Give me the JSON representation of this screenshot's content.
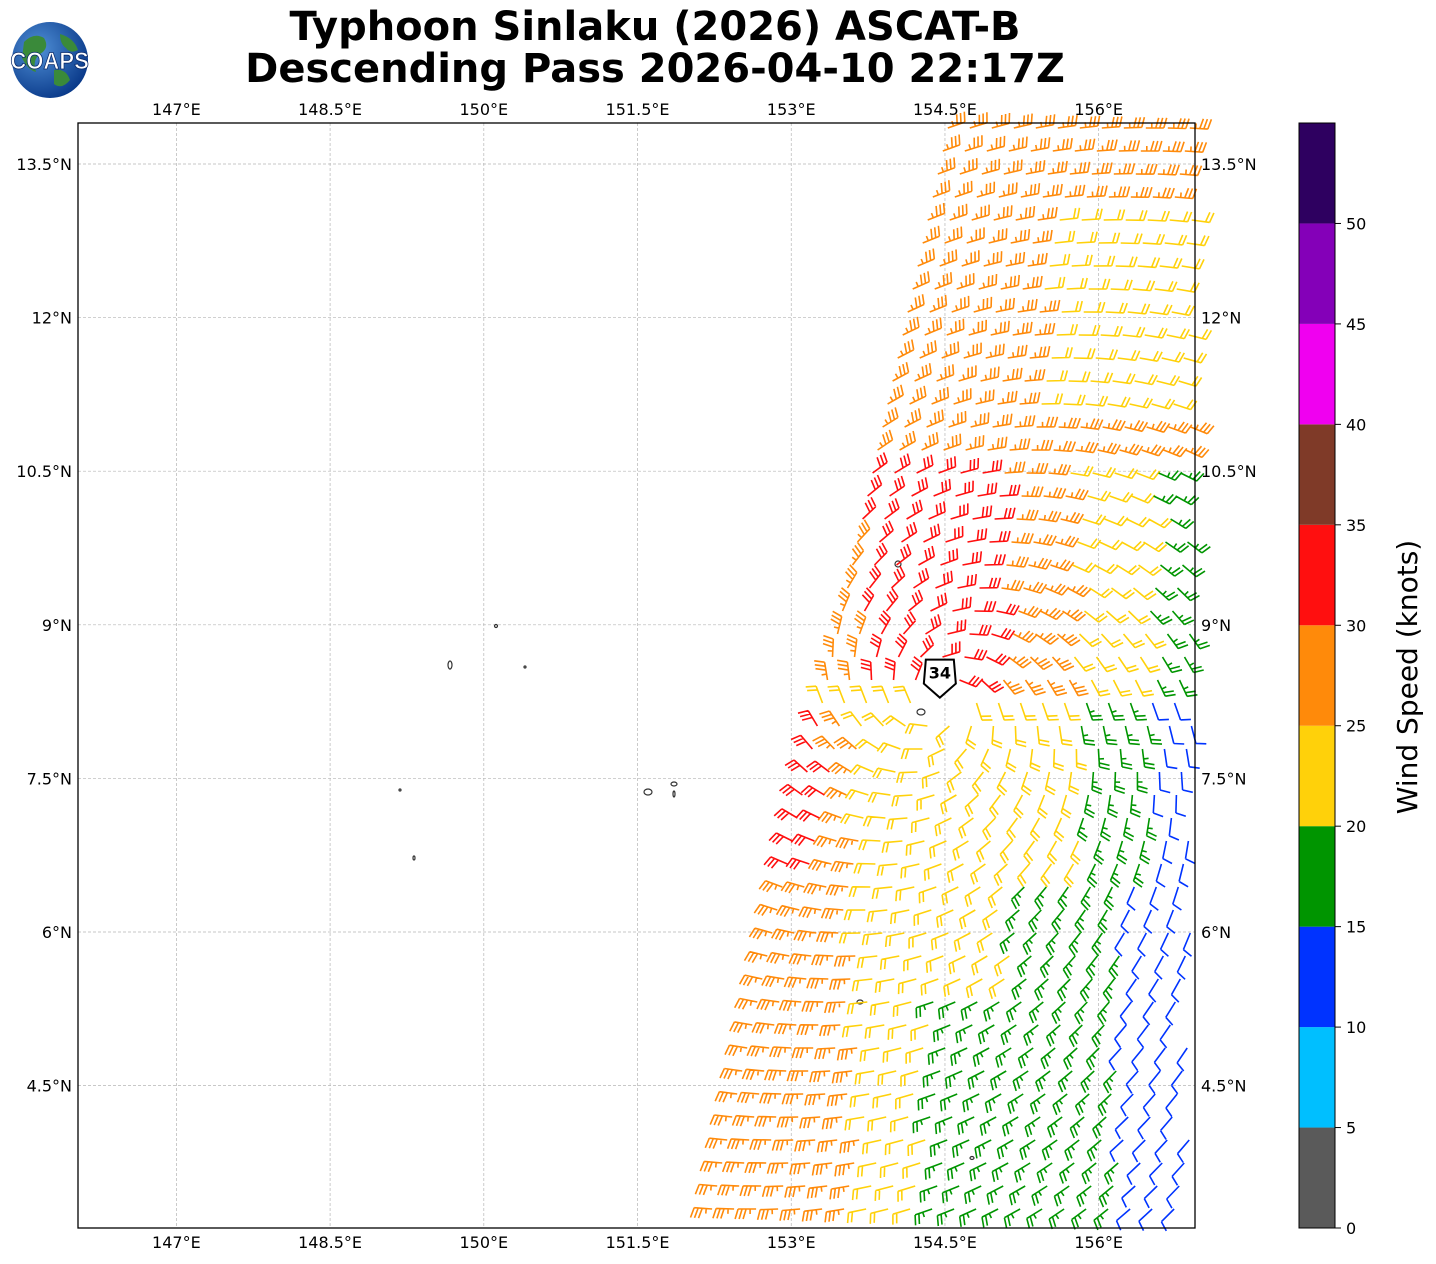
{
  "title": {
    "line1": "Typhoon Sinlaku (2026) ASCAT-B",
    "line2": "Descending Pass 2026-04-10 22:17Z"
  },
  "logo": {
    "text": "COAPS",
    "icon": "globe-icon"
  },
  "map": {
    "lon_ticks": [
      "147°E",
      "148.5°E",
      "150°E",
      "151.5°E",
      "153°E",
      "154.5°E",
      "156°E"
    ],
    "lon_values": [
      147,
      148.5,
      150,
      151.5,
      153,
      154.5,
      156
    ],
    "lat_ticks": [
      "13.5°N",
      "12°N",
      "10.5°N",
      "9°N",
      "7.5°N",
      "6°N",
      "4.5°N"
    ],
    "lat_values": [
      13.5,
      12,
      10.5,
      9,
      7.5,
      6,
      4.5
    ],
    "lon_range": [
      146.04,
      156.94
    ],
    "lat_range": [
      3.11,
      13.9
    ],
    "grid": true,
    "storm_marker": {
      "label": "34",
      "lon": 154.45,
      "lat": 8.25
    }
  },
  "colorbar": {
    "label": "Wind Speed (knots)",
    "ticks": [
      "0",
      "5",
      "10",
      "15",
      "20",
      "25",
      "30",
      "35",
      "40",
      "45",
      "50"
    ],
    "bins": [
      {
        "from": 0,
        "to": 5,
        "color": "#5a5a5a"
      },
      {
        "from": 5,
        "to": 10,
        "color": "#00bfff"
      },
      {
        "from": 10,
        "to": 15,
        "color": "#0033ff"
      },
      {
        "from": 15,
        "to": 20,
        "color": "#009500"
      },
      {
        "from": 20,
        "to": 25,
        "color": "#ffd10a"
      },
      {
        "from": 25,
        "to": 30,
        "color": "#ff8a0a"
      },
      {
        "from": 30,
        "to": 35,
        "color": "#ff0f0f"
      },
      {
        "from": 35,
        "to": 40,
        "color": "#7f3a28"
      },
      {
        "from": 40,
        "to": 45,
        "color": "#f000f0"
      },
      {
        "from": 45,
        "to": 50,
        "color": "#8400b8"
      },
      {
        "from": 50,
        "to": 55,
        "color": "#2e0060"
      }
    ]
  }
}
